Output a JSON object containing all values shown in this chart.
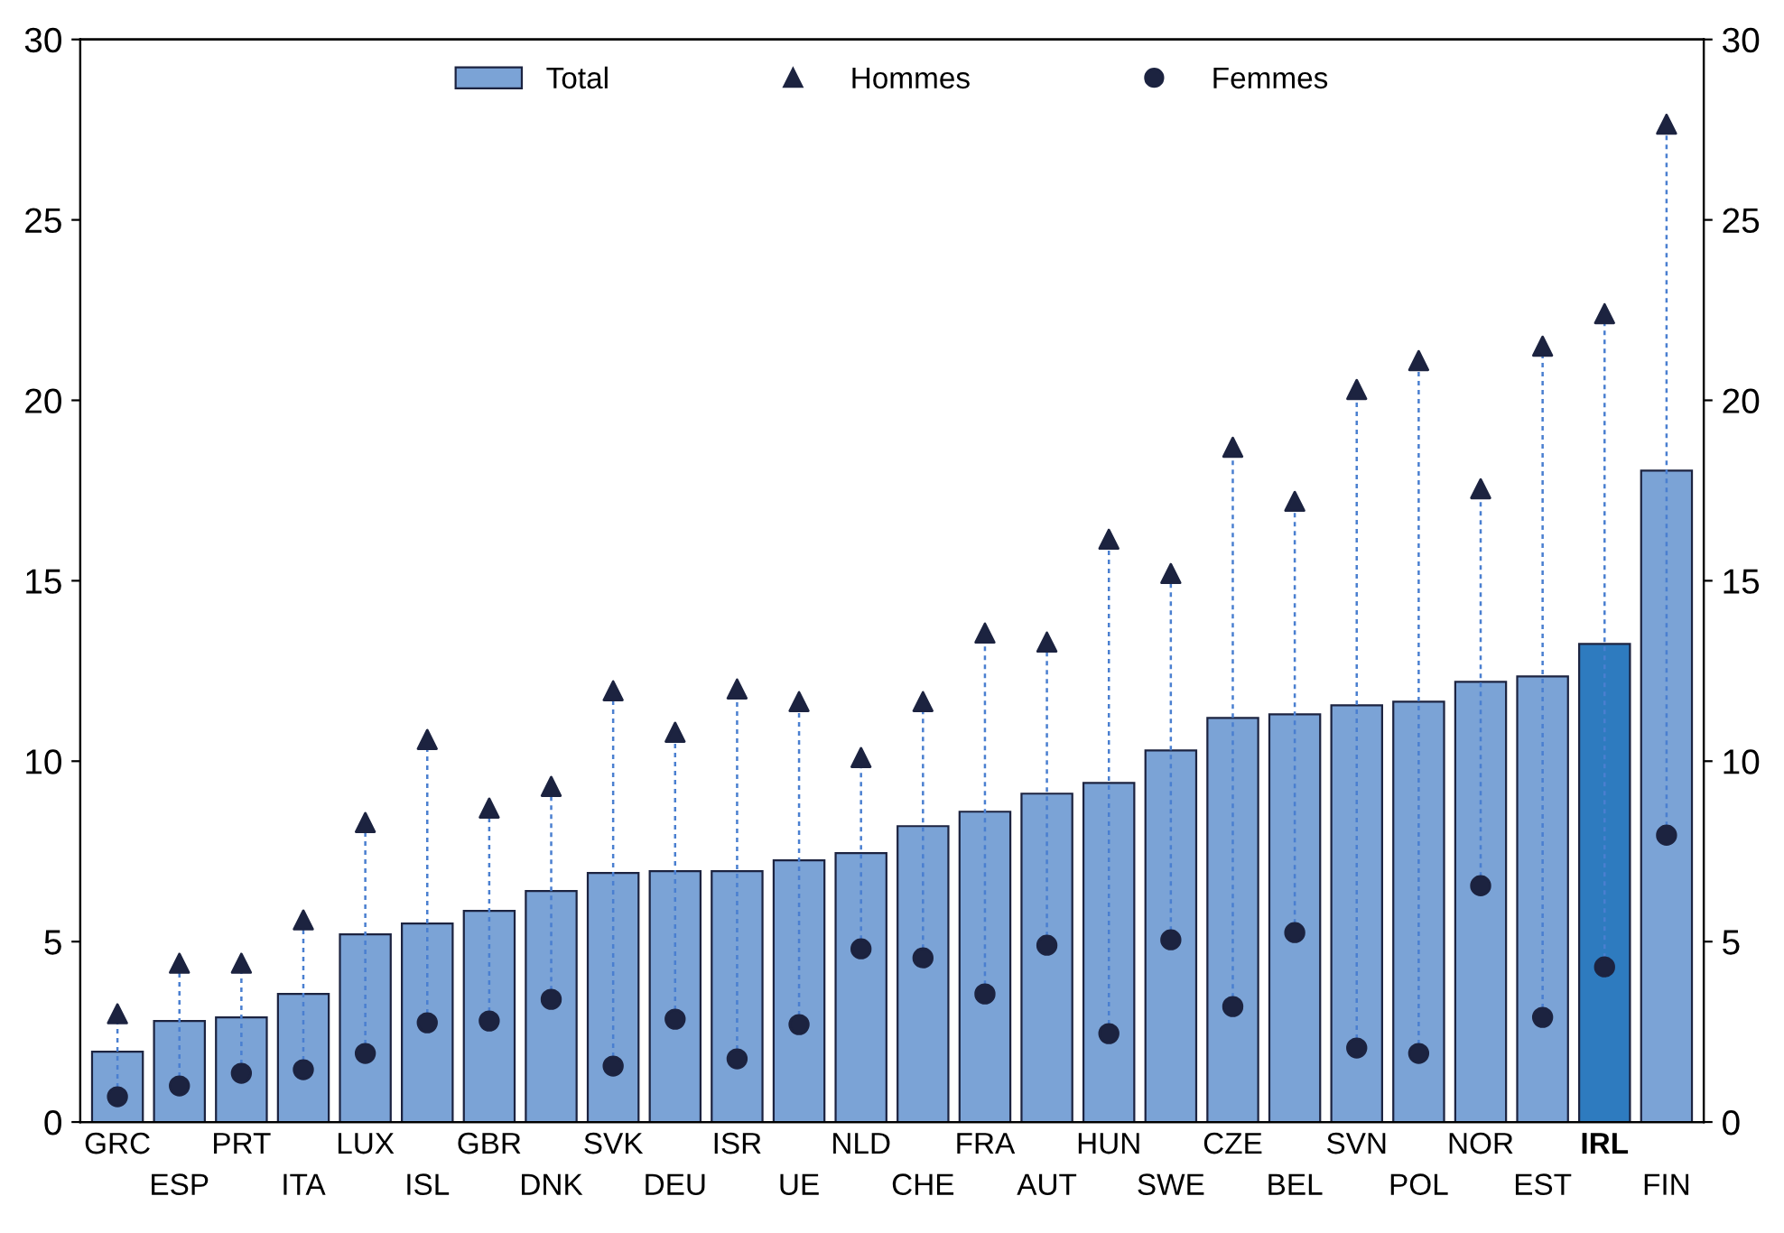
{
  "chart_data": {
    "type": "bar",
    "categories": [
      "GRC",
      "ESP",
      "PRT",
      "ITA",
      "LUX",
      "ISL",
      "GBR",
      "DNK",
      "SVK",
      "DEU",
      "ISR",
      "UE",
      "NLD",
      "CHE",
      "FRA",
      "AUT",
      "HUN",
      "SWE",
      "CZE",
      "BEL",
      "SVN",
      "POL",
      "NOR",
      "EST",
      "IRL",
      "FIN"
    ],
    "series": [
      {
        "name": "Total",
        "color": "#7ba3d6",
        "colors": [
          "#7ba3d6",
          "#7ba3d6",
          "#7ba3d6",
          "#7ba3d6",
          "#7ba3d6",
          "#7ba3d6",
          "#7ba3d6",
          "#7ba3d6",
          "#7ba3d6",
          "#7ba3d6",
          "#7ba3d6",
          "#7ba3d6",
          "#7ba3d6",
          "#7ba3d6",
          "#7ba3d6",
          "#7ba3d6",
          "#7ba3d6",
          "#7ba3d6",
          "#7ba3d6",
          "#7ba3d6",
          "#7ba3d6",
          "#7ba3d6",
          "#7ba3d6",
          "#7ba3d6",
          "#2e7bbf",
          "#7ba3d6"
        ],
        "values": [
          1.95,
          2.8,
          2.9,
          3.55,
          5.2,
          5.5,
          5.85,
          6.4,
          6.9,
          6.95,
          6.95,
          7.25,
          7.45,
          8.2,
          8.6,
          9.1,
          9.4,
          10.3,
          11.2,
          11.3,
          11.55,
          11.65,
          12.2,
          12.35,
          13.25,
          18.05
        ]
      },
      {
        "name": "Hommes",
        "type": "scatter",
        "marker": "triangle",
        "color": "#1c2340",
        "values": [
          3.0,
          4.4,
          4.4,
          5.6,
          8.3,
          10.6,
          8.7,
          9.3,
          11.95,
          10.8,
          12.0,
          11.65,
          10.1,
          11.65,
          13.55,
          13.3,
          16.15,
          15.2,
          18.7,
          17.2,
          20.3,
          21.1,
          17.55,
          21.5,
          22.4,
          27.65
        ]
      },
      {
        "name": "Femmes",
        "type": "scatter",
        "marker": "circle",
        "color": "#1c2340",
        "values": [
          0.7,
          1.0,
          1.35,
          1.45,
          1.9,
          2.75,
          2.8,
          3.4,
          1.55,
          2.85,
          1.75,
          2.7,
          4.8,
          4.55,
          3.55,
          4.9,
          2.45,
          5.05,
          3.2,
          5.25,
          2.05,
          1.9,
          6.55,
          2.9,
          4.3,
          7.95
        ]
      }
    ],
    "line_style": "dashed",
    "ylim": [
      0,
      30
    ],
    "yticks": [
      0,
      5,
      10,
      15,
      20,
      25,
      30
    ],
    "y2lim": [
      0,
      30
    ],
    "y2ticks": [
      0,
      5,
      10,
      15,
      20,
      25,
      30
    ],
    "grid": false,
    "legend": "top"
  }
}
